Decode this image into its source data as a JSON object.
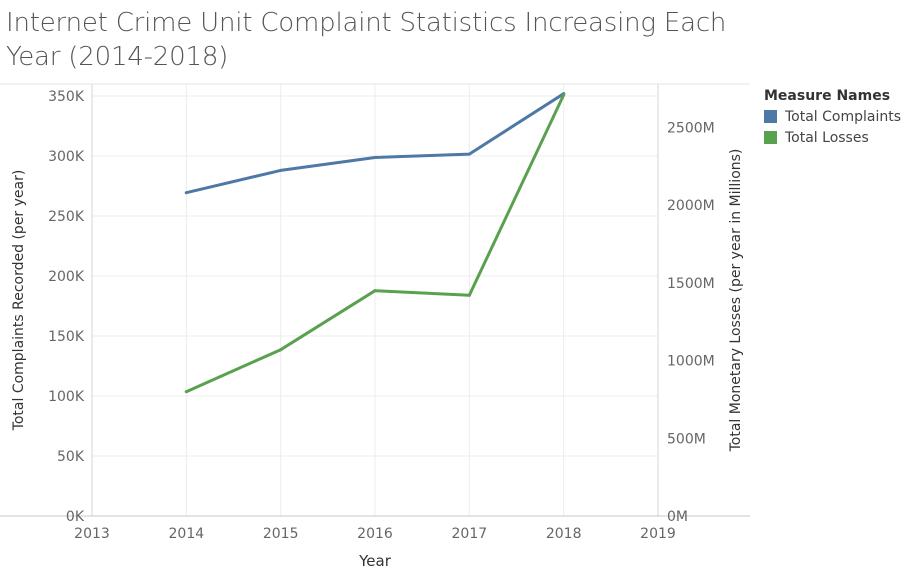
{
  "title": "Internet Crime Unit Complaint Statistics Increasing Each Year (2014-2018)",
  "legend": {
    "title": "Measure Names",
    "items": [
      {
        "label": "Total Complaints",
        "color": "#4e79a7"
      },
      {
        "label": "Total Losses",
        "color": "#59a14f"
      }
    ]
  },
  "chart_data": {
    "type": "line",
    "xlabel": "Year",
    "ylabel_left": "Total Complaints Recorded (per year)",
    "ylabel_right": "Total Monetary Losses (per year in Millions)",
    "x_ticks": [
      "2013",
      "2014",
      "2015",
      "2016",
      "2017",
      "2018",
      "2019"
    ],
    "x_range": [
      2013,
      2019
    ],
    "y_left_range": [
      0,
      360000
    ],
    "y_left_ticks": [
      {
        "value": 0,
        "label": "0K"
      },
      {
        "value": 50000,
        "label": "50K"
      },
      {
        "value": 100000,
        "label": "100K"
      },
      {
        "value": 150000,
        "label": "150K"
      },
      {
        "value": 200000,
        "label": "200K"
      },
      {
        "value": 250000,
        "label": "250K"
      },
      {
        "value": 300000,
        "label": "300K"
      },
      {
        "value": 350000,
        "label": "350K"
      }
    ],
    "y_right_range": [
      0,
      2780
    ],
    "y_right_ticks": [
      {
        "value": 0,
        "label": "0M"
      },
      {
        "value": 500,
        "label": "500M"
      },
      {
        "value": 1000,
        "label": "1000M"
      },
      {
        "value": 1500,
        "label": "1500M"
      },
      {
        "value": 2000,
        "label": "2000M"
      },
      {
        "value": 2500,
        "label": "2500M"
      }
    ],
    "series": [
      {
        "name": "Total Complaints",
        "axis": "left",
        "color": "#4e79a7",
        "x": [
          2014,
          2015,
          2016,
          2017,
          2018
        ],
        "values": [
          269422,
          288012,
          298728,
          301580,
          351937
        ]
      },
      {
        "name": "Total Losses",
        "axis": "right",
        "color": "#59a14f",
        "x": [
          2014,
          2015,
          2016,
          2017,
          2018
        ],
        "values": [
          800,
          1070,
          1450,
          1420,
          2710
        ]
      }
    ],
    "grid": true
  }
}
